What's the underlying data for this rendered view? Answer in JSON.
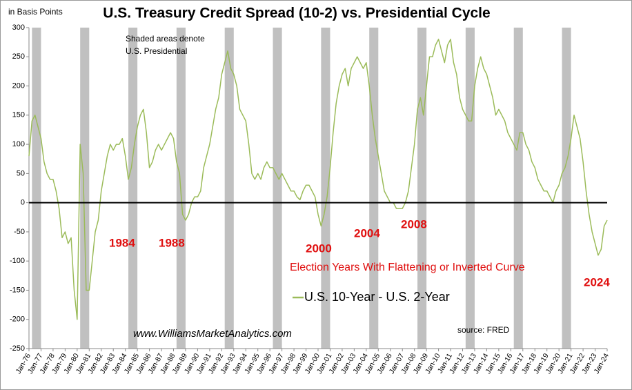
{
  "chart_data": {
    "type": "line",
    "title": "U.S. Treasury Credit Spread (10-2) vs. Presidential Cycle",
    "y_axis_label": "in Basis Points",
    "note_lines": [
      "Shaded areas denote",
      "U.S. Presidential"
    ],
    "election_labels": [
      "1984",
      "1988",
      "2000",
      "2004",
      "2008",
      "2024"
    ],
    "annotation": "Election Years With Flattening or Inverted Curve",
    "website": "www.WilliamsMarketAnalytics.com",
    "source": "source: FRED",
    "categories": [
      "Jan-76",
      null,
      null,
      null,
      "Jan-77",
      null,
      null,
      null,
      "Jan-78",
      null,
      null,
      null,
      "Jan-79",
      null,
      null,
      null,
      "Jan-80",
      null,
      null,
      null,
      "Jan-81",
      null,
      null,
      null,
      "Jan-82",
      null,
      null,
      null,
      "Jan-83",
      null,
      null,
      null,
      "Jan-84",
      null,
      null,
      null,
      "Jan-85",
      null,
      null,
      null,
      "Jan-86",
      null,
      null,
      null,
      "Jan-87",
      null,
      null,
      null,
      "Jan-88",
      null,
      null,
      null,
      "Jan-89",
      null,
      null,
      null,
      "Jan-90",
      null,
      null,
      null,
      "Jan-91",
      null,
      null,
      null,
      "Jan-92",
      null,
      null,
      null,
      "Jan-93",
      null,
      null,
      null,
      "Jan-94",
      null,
      null,
      null,
      "Jan-95",
      null,
      null,
      null,
      "Jan-96",
      null,
      null,
      null,
      "Jan-97",
      null,
      null,
      null,
      "Jan-98",
      null,
      null,
      null,
      "Jan-99",
      null,
      null,
      null,
      "Jan-00",
      null,
      null,
      null,
      "Jan-01",
      null,
      null,
      null,
      "Jan-02",
      null,
      null,
      null,
      "Jan-03",
      null,
      null,
      null,
      "Jan-04",
      null,
      null,
      null,
      "Jan-05",
      null,
      null,
      null,
      "Jan-06",
      null,
      null,
      null,
      "Jan-07",
      null,
      null,
      null,
      "Jan-08",
      null,
      null,
      null,
      "Jan-09",
      null,
      null,
      null,
      "Jan-10",
      null,
      null,
      null,
      "Jan-11",
      null,
      null,
      null,
      "Jan-12",
      null,
      null,
      null,
      "Jan-13",
      null,
      null,
      null,
      "Jan-14",
      null,
      null,
      null,
      "Jan-15",
      null,
      null,
      null,
      "Jan-16",
      null,
      null,
      null,
      "Jan-17",
      null,
      null,
      null,
      "Jan-18",
      null,
      null,
      null,
      "Jan-19",
      null,
      null,
      null,
      "Jan-20",
      null,
      null,
      null,
      "Jan-21",
      null,
      null,
      null,
      "Jan-22",
      null,
      null,
      null,
      "Jan-23",
      null,
      null,
      null,
      "Jan-24"
    ],
    "series": [
      {
        "name": "U.S. 10-Year - U.S. 2-Year",
        "color": "#9bbb59",
        "values": [
          80,
          140,
          150,
          130,
          110,
          70,
          50,
          40,
          40,
          20,
          -10,
          -60,
          -50,
          -70,
          -60,
          -150,
          -200,
          100,
          50,
          -150,
          -150,
          -100,
          -50,
          -30,
          20,
          50,
          80,
          100,
          90,
          100,
          100,
          110,
          80,
          40,
          60,
          100,
          130,
          150,
          160,
          120,
          60,
          70,
          90,
          100,
          90,
          100,
          110,
          120,
          110,
          70,
          50,
          -20,
          -30,
          -20,
          0,
          10,
          10,
          20,
          60,
          80,
          100,
          130,
          160,
          180,
          220,
          240,
          260,
          230,
          220,
          200,
          160,
          150,
          140,
          100,
          50,
          40,
          50,
          40,
          60,
          70,
          60,
          60,
          50,
          40,
          50,
          40,
          30,
          20,
          20,
          10,
          5,
          20,
          30,
          30,
          20,
          10,
          -20,
          -40,
          -20,
          10,
          60,
          120,
          170,
          200,
          220,
          230,
          200,
          230,
          240,
          250,
          240,
          230,
          240,
          200,
          150,
          110,
          80,
          50,
          20,
          10,
          0,
          0,
          -10,
          -10,
          -10,
          0,
          20,
          60,
          100,
          160,
          180,
          150,
          200,
          250,
          250,
          270,
          280,
          260,
          240,
          270,
          280,
          240,
          220,
          180,
          160,
          150,
          140,
          140,
          200,
          230,
          250,
          230,
          220,
          200,
          180,
          150,
          160,
          150,
          140,
          120,
          110,
          100,
          90,
          120,
          120,
          100,
          90,
          70,
          60,
          40,
          30,
          20,
          20,
          10,
          0,
          20,
          30,
          50,
          60,
          80,
          110,
          150,
          130,
          110,
          70,
          20,
          -20,
          -50,
          -70,
          -90,
          -80,
          -40,
          -30
        ]
      }
    ],
    "ylim": [
      -250,
      300
    ],
    "yticks": [
      -250,
      -200,
      -150,
      -100,
      -50,
      0,
      50,
      100,
      150,
      200,
      250,
      300
    ],
    "zero_line": true,
    "shade_color": "#c0c0c0"
  }
}
